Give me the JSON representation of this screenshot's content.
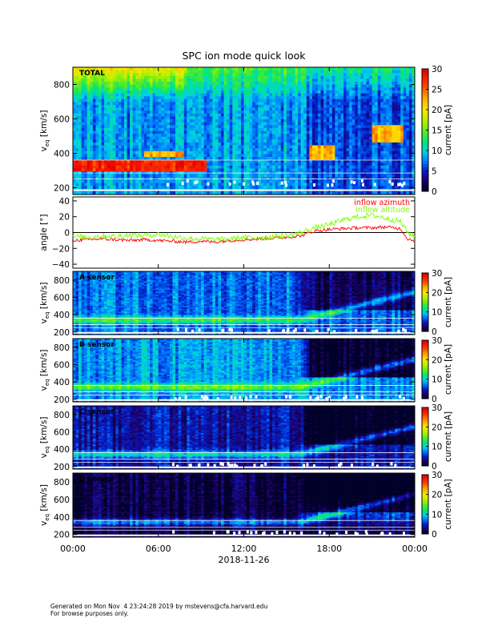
{
  "footer": {
    "line1": "Generated on Mon Nov  4 23:24:28 2019 by mstevens@cfa.harvard.edu",
    "line2": "For browse purposes only."
  },
  "chart_data": [
    {
      "type": "heatmap",
      "title": "SPC ion mode quick look",
      "panel_label": "TOTAL",
      "ylabel": "v_eq [km/s]",
      "ylim": [
        160,
        900
      ],
      "yticks": [
        200,
        400,
        600,
        800
      ],
      "colorbar": {
        "label": "current [pA]",
        "range": [
          0,
          30
        ],
        "ticks": [
          0,
          5,
          10,
          15,
          20,
          25,
          30
        ]
      },
      "description_bands": [
        {
          "v_range": [
            300,
            360
          ],
          "current_pA": 28,
          "time_hours": [
            0,
            9
          ]
        },
        {
          "v_range": [
            380,
            420
          ],
          "current_pA": 24,
          "time_hours": [
            5,
            7.5
          ]
        },
        {
          "v_range": [
            380,
            440
          ],
          "current_pA": 26,
          "time_hours": [
            16.5,
            18.2
          ]
        },
        {
          "v_range": [
            480,
            560
          ],
          "current_pA": 24,
          "time_hours": [
            21,
            23
          ]
        }
      ]
    },
    {
      "type": "line",
      "ylabel": "angle [°]",
      "ylim": [
        -45,
        45
      ],
      "yticks": [
        -40,
        -20,
        0,
        20,
        40
      ],
      "zero_line": true,
      "legend_position": "top-right",
      "x_hours": [
        0,
        1,
        2,
        3,
        4,
        5,
        6,
        7,
        8,
        9,
        10,
        11,
        12,
        13,
        14,
        15,
        16,
        17,
        18,
        19,
        20,
        21,
        22,
        23,
        23.5,
        24
      ],
      "series": [
        {
          "name": "inflow azimuth",
          "color": "#ff0000",
          "values": [
            -10,
            -9,
            -8,
            -9,
            -10,
            -9,
            -10,
            -11,
            -12,
            -11,
            -12,
            -10,
            -9,
            -8,
            -7,
            -6,
            -4,
            2,
            4,
            5,
            6,
            6,
            7,
            5,
            -8,
            -10
          ]
        },
        {
          "name": "inflow altitude",
          "color": "#7fff00",
          "values": [
            -5,
            -6,
            -4,
            -5,
            -3,
            -4,
            -2,
            -5,
            -7,
            -8,
            -9,
            -8,
            -6,
            -7,
            -5,
            -4,
            0,
            6,
            10,
            16,
            20,
            22,
            18,
            14,
            0,
            -5
          ]
        }
      ]
    },
    {
      "type": "heatmap",
      "panel_label": "A sensor",
      "ylabel": "v_eq [km/s]",
      "ylim": [
        170,
        900
      ],
      "yticks": [
        200,
        400,
        600,
        800
      ],
      "colorbar": {
        "label": "current [pA]",
        "range": [
          0,
          30
        ],
        "ticks": [
          0,
          10,
          20,
          30
        ]
      }
    },
    {
      "type": "heatmap",
      "panel_label": "B sensor",
      "ylabel": "v_eq [km/s]",
      "ylim": [
        170,
        900
      ],
      "yticks": [
        200,
        400,
        600,
        800
      ],
      "colorbar": {
        "label": "current [pA]",
        "range": [
          0,
          30
        ],
        "ticks": [
          0,
          10,
          20,
          30
        ]
      }
    },
    {
      "type": "heatmap",
      "panel_label": "C sensor",
      "ylabel": "v_eq [km/s]",
      "ylim": [
        170,
        900
      ],
      "yticks": [
        200,
        400,
        600,
        800
      ],
      "colorbar": {
        "label": "current [pA]",
        "range": [
          0,
          30
        ],
        "ticks": [
          0,
          10,
          20,
          30
        ]
      }
    },
    {
      "type": "heatmap",
      "panel_label": "D sensor",
      "ylabel": "v_eq [km/s]",
      "ylim": [
        170,
        900
      ],
      "yticks": [
        200,
        400,
        600,
        800
      ],
      "colorbar": {
        "label": "current [pA]",
        "range": [
          0,
          30
        ],
        "ticks": [
          0,
          10,
          20,
          30
        ]
      }
    }
  ],
  "x_axis": {
    "tick_labels": [
      "00:00",
      "06:00",
      "12:00",
      "18:00",
      "00:00"
    ],
    "tick_hours": [
      0,
      6,
      12,
      18,
      24
    ],
    "date_label": "2018-11-26"
  }
}
